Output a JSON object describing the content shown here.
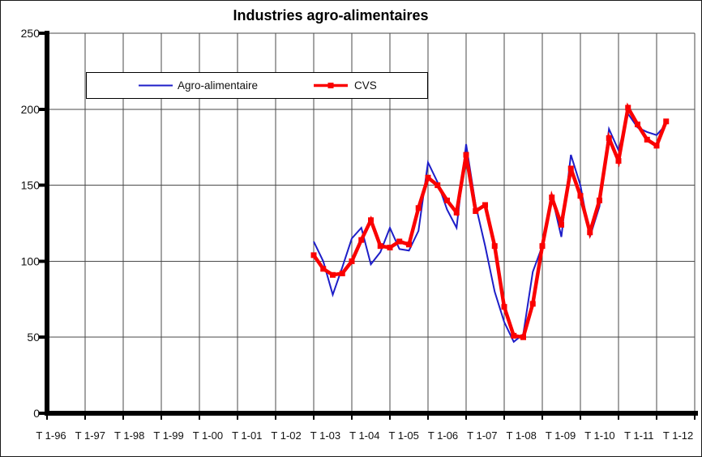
{
  "chart_data": {
    "type": "line",
    "title": "Industries agro-alimentaires",
    "grid": true,
    "legend_position": "inside-top-left",
    "x_axis": {
      "tick_labels": [
        "T 1-96",
        "T 1-97",
        "T 1-98",
        "T 1-99",
        "T 1-00",
        "T 1-01",
        "T 1-02",
        "T 1-03",
        "T 1-04",
        "T 1-05",
        "T 1-06",
        "T 1-07",
        "T 1-08",
        "T 1-09",
        "T 1-10",
        "T 1-11",
        "T 1-12"
      ],
      "unit": "quarter",
      "start_offset_quarters": 28
    },
    "y_axis": {
      "tick_labels": [
        "250",
        "200",
        "150",
        "100",
        "50",
        "0"
      ],
      "min": 0,
      "max": 250,
      "step": 50
    },
    "categories": [
      "T1-03",
      "T2-03",
      "T3-03",
      "T4-03",
      "T1-04",
      "T2-04",
      "T3-04",
      "T4-04",
      "T1-05",
      "T2-05",
      "T3-05",
      "T4-05",
      "T1-06",
      "T2-06",
      "T3-06",
      "T4-06",
      "T1-07",
      "T2-07",
      "T3-07",
      "T4-07",
      "T1-08",
      "T2-08",
      "T3-08",
      "T4-08",
      "T1-09",
      "T2-09",
      "T3-09",
      "T4-09",
      "T1-10",
      "T2-10",
      "T3-10",
      "T4-10",
      "T1-11",
      "T2-11",
      "T3-11",
      "T4-11",
      "T1-12",
      "T2-12"
    ],
    "series": [
      {
        "name": "Agro-alimentaire",
        "color": "#1e1ec8",
        "marker": "none",
        "values": [
          113,
          100,
          78,
          96,
          115,
          122,
          98,
          106,
          122,
          108,
          107,
          120,
          165,
          152,
          134,
          122,
          177,
          137,
          110,
          80,
          60,
          47,
          52,
          93,
          110,
          143,
          116,
          170,
          150,
          116,
          136,
          187,
          173,
          197,
          188,
          185,
          183,
          190
        ]
      },
      {
        "name": "CVS",
        "color": "#fa0000",
        "marker": "square",
        "values": [
          104,
          95,
          91,
          92,
          100,
          114,
          127,
          110,
          109,
          113,
          111,
          135,
          155,
          150,
          140,
          132,
          170,
          133,
          137,
          110,
          70,
          51,
          50,
          72,
          110,
          142,
          124,
          161,
          143,
          119,
          140,
          181,
          166,
          201,
          190,
          180,
          176,
          192
        ]
      }
    ]
  },
  "colors": {
    "gridline": "#4a4a4a",
    "axis": "#000000",
    "plot_background": "#ffffff"
  }
}
